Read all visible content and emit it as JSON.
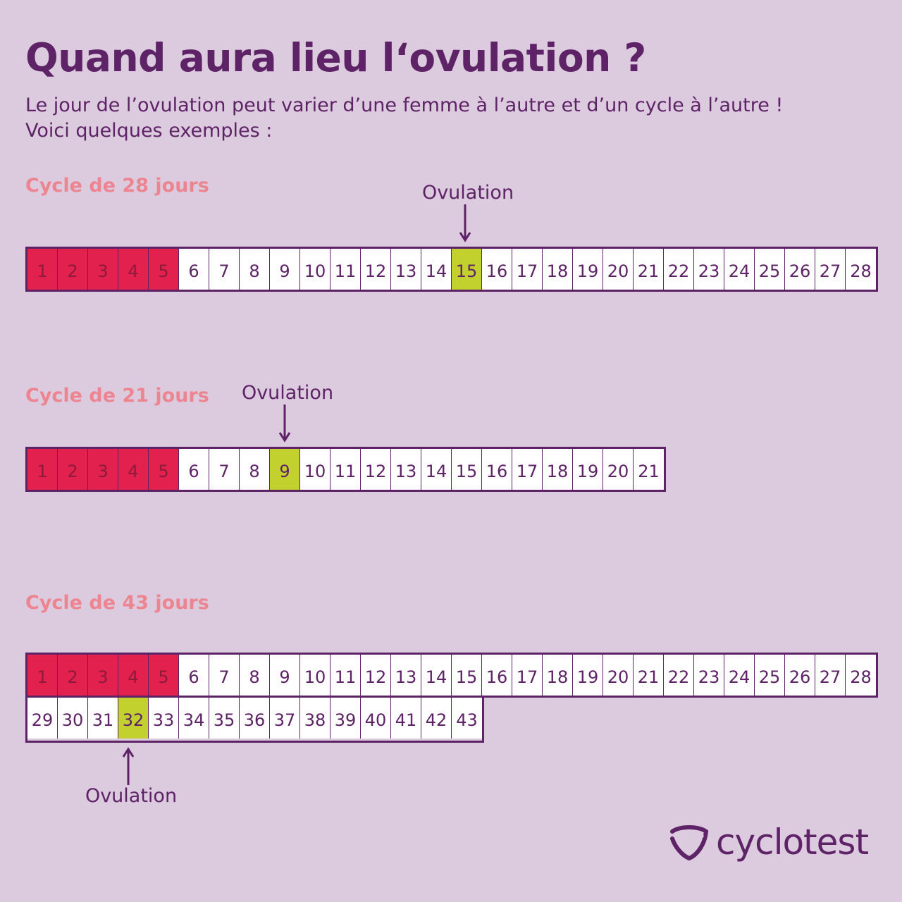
{
  "header": {
    "title": "Quand aura lieu l‘ovulation ?",
    "subtitle_line1": "Le jour de l’ovulation peut varier d’une femme à l’autre et d’un cycle à l’autre !",
    "subtitle_line2": "Voici quelques exemples :"
  },
  "cycles": [
    {
      "label": "Cycle de 28 jours",
      "length": 28,
      "period_days": [
        1,
        2,
        3,
        4,
        5
      ],
      "ovulation_day": 15,
      "ovulation_label": "Ovulation",
      "rows": [
        [
          1,
          2,
          3,
          4,
          5,
          6,
          7,
          8,
          9,
          10,
          11,
          12,
          13,
          14,
          15,
          16,
          17,
          18,
          19,
          20,
          21,
          22,
          23,
          24,
          25,
          26,
          27,
          28
        ]
      ]
    },
    {
      "label": "Cycle de 21 jours",
      "length": 21,
      "period_days": [
        1,
        2,
        3,
        4,
        5
      ],
      "ovulation_day": 9,
      "ovulation_label": "Ovulation",
      "rows": [
        [
          1,
          2,
          3,
          4,
          5,
          6,
          7,
          8,
          9,
          10,
          11,
          12,
          13,
          14,
          15,
          16,
          17,
          18,
          19,
          20,
          21
        ]
      ]
    },
    {
      "label": "Cycle de 43 jours",
      "length": 43,
      "period_days": [
        1,
        2,
        3,
        4,
        5
      ],
      "ovulation_day": 32,
      "ovulation_label": "Ovulation",
      "rows": [
        [
          1,
          2,
          3,
          4,
          5,
          6,
          7,
          8,
          9,
          10,
          11,
          12,
          13,
          14,
          15,
          16,
          17,
          18,
          19,
          20,
          21,
          22,
          23,
          24,
          25,
          26,
          27,
          28
        ],
        [
          29,
          30,
          31,
          32,
          33,
          34,
          35,
          36,
          37,
          38,
          39,
          40,
          41,
          42,
          43
        ]
      ]
    }
  ],
  "colors": {
    "background": "#dccbde",
    "text": "#5e2266",
    "cycle_label": "#ec8591",
    "period": "#e3214f",
    "ovulation": "#c2d12e",
    "day_cell": "#ffffff"
  },
  "brand": {
    "name": "cyclotest",
    "icon": "cyclotest-logo-icon"
  }
}
